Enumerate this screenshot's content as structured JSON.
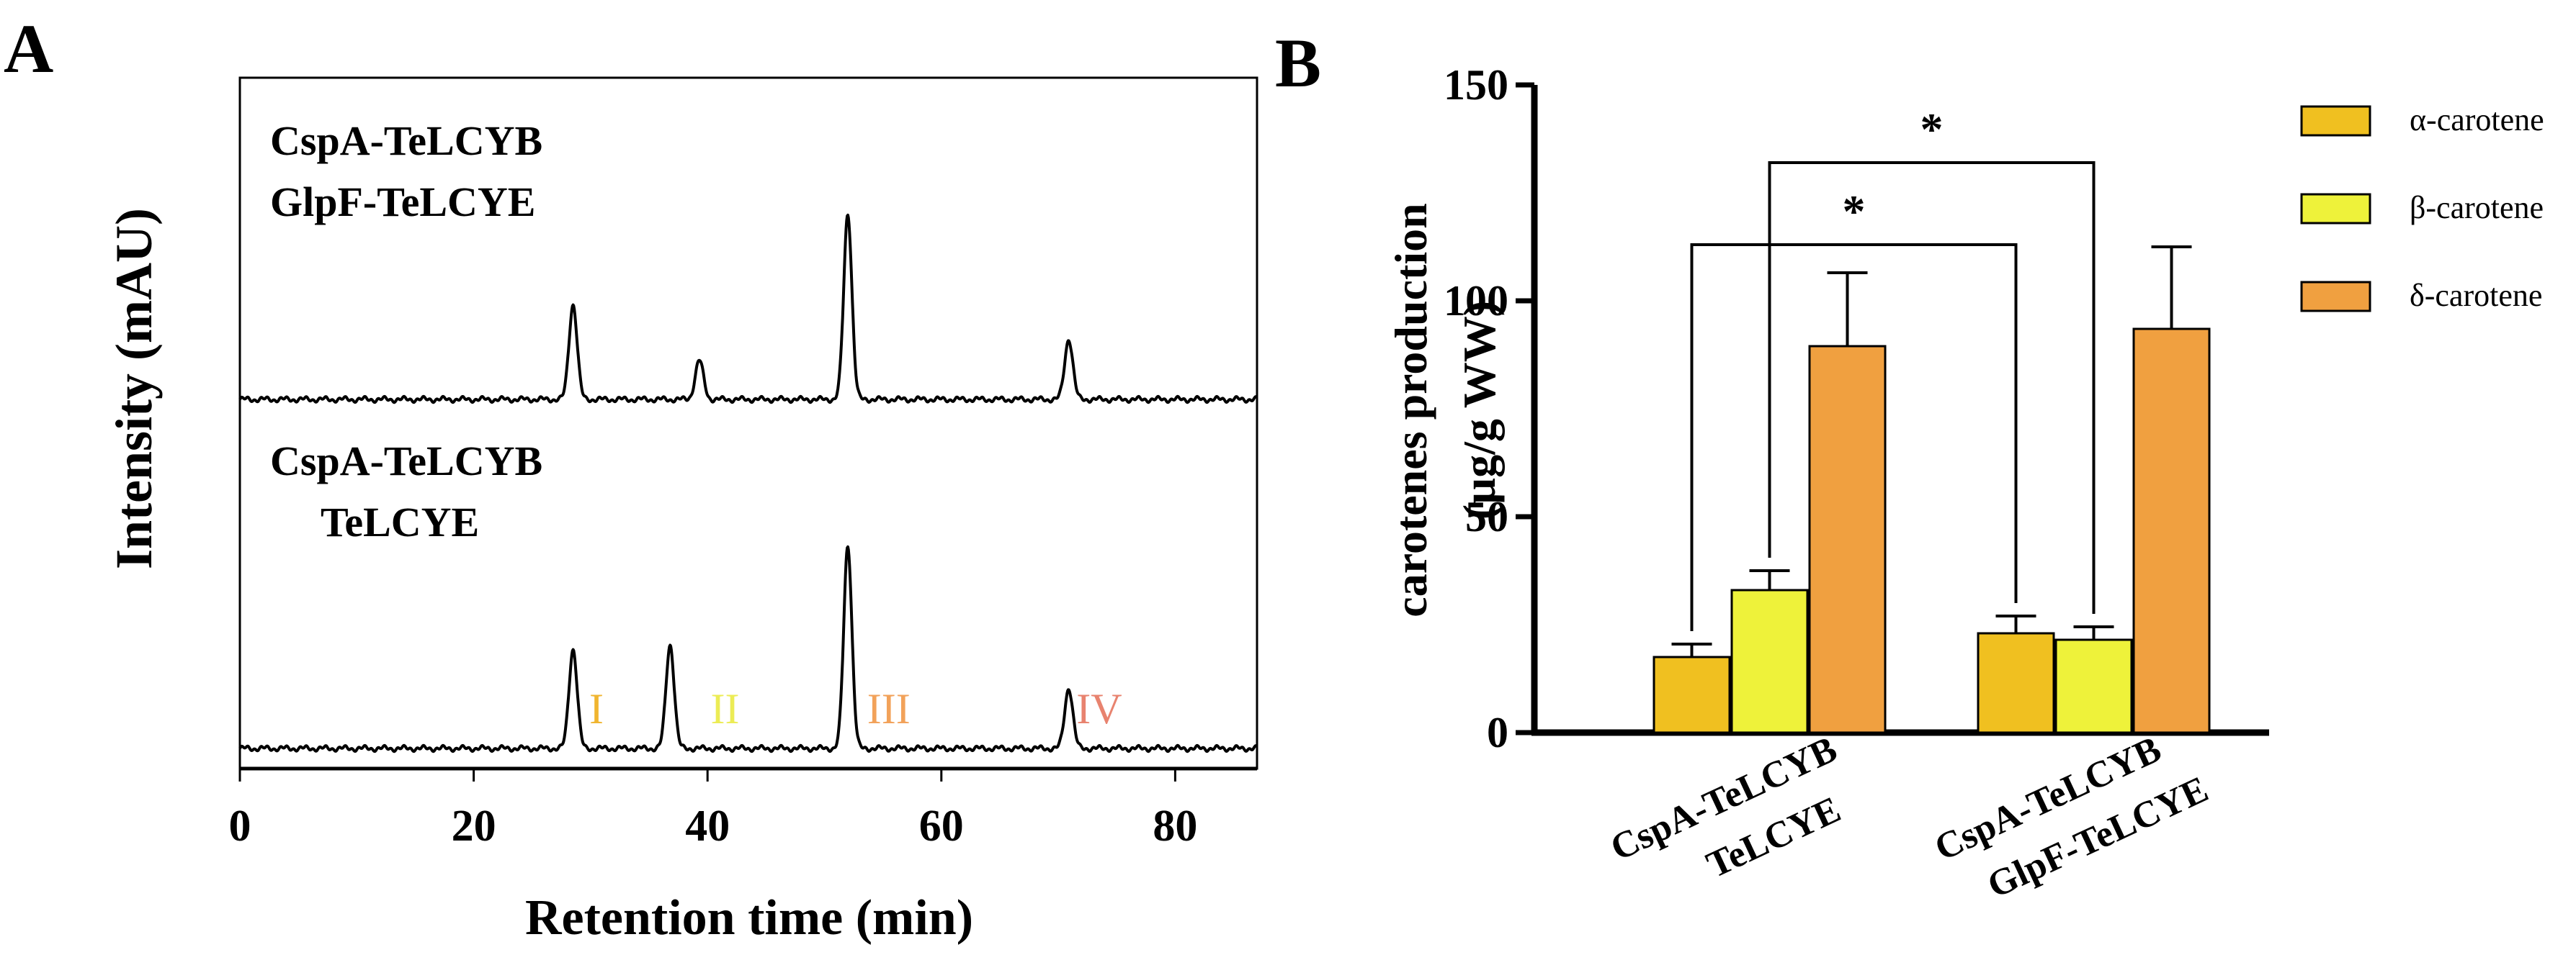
{
  "chart_data": [
    {
      "panel": "A",
      "type": "line",
      "xlabel": "Retention time (min)",
      "ylabel": "Intensity (mAU)",
      "xlim": [
        0,
        87
      ],
      "x_ticks": [
        0,
        20,
        40,
        60,
        80
      ],
      "grid": false,
      "series": [
        {
          "name": "CspA-TeLCYB GlpF-TeLCYE",
          "label_lines": [
            "CspA-TeLCYB",
            "GlpF-TeLCYE"
          ],
          "peaks": [
            {
              "x": 28.5,
              "height": 0.22
            },
            {
              "x": 39.3,
              "height": 0.09
            },
            {
              "x": 52.0,
              "height": 0.43
            },
            {
              "x": 70.9,
              "height": 0.14
            }
          ]
        },
        {
          "name": "CspA-TeLCYB TeLCYE",
          "label_lines": [
            "CspA-TeLCYB",
            "TeLCYE"
          ],
          "peaks": [
            {
              "x": 28.5,
              "height": 0.23
            },
            {
              "x": 36.8,
              "height": 0.24
            },
            {
              "x": 52.0,
              "height": 0.47
            },
            {
              "x": 70.9,
              "height": 0.14
            }
          ]
        }
      ],
      "annotations": [
        {
          "text": "I",
          "x": 30.5,
          "color": "#f0b530"
        },
        {
          "text": "II",
          "x": 41.5,
          "color": "#ecec55"
        },
        {
          "text": "III",
          "x": 55.5,
          "color": "#f2a25a"
        },
        {
          "text": "IV",
          "x": 73.5,
          "color": "#e8836f"
        }
      ]
    },
    {
      "panel": "B",
      "type": "bar",
      "ylabel_lines": [
        "carotenes production",
        "(µg/g WW)"
      ],
      "ylim": [
        0,
        150
      ],
      "y_ticks": [
        0,
        50,
        100,
        150
      ],
      "categories": [
        {
          "lines": [
            "CspA-TeLCYB",
            "TeLCYE"
          ]
        },
        {
          "lines": [
            "CspA-TeLCYB",
            "GlpF-TeLCYE"
          ]
        }
      ],
      "legend_position": "right",
      "series": [
        {
          "name": "α-carotene",
          "color": "#f0c020",
          "values": [
            17.5,
            23.0
          ],
          "errors": [
            3.0,
            4.0
          ]
        },
        {
          "name": "β-carotene",
          "color": "#eef23a",
          "values": [
            33.0,
            21.5
          ],
          "errors": [
            4.5,
            3.0
          ]
        },
        {
          "name": "δ-carotene",
          "color": "#f0a040",
          "values": [
            89.5,
            93.5
          ],
          "errors": [
            17.0,
            19.0
          ]
        }
      ],
      "significance": [
        {
          "text": "*",
          "from": {
            "category": 0,
            "series": 0
          },
          "to": {
            "category": 1,
            "series": 0
          },
          "level": 113
        },
        {
          "text": "*",
          "from": {
            "category": 0,
            "series": 1
          },
          "to": {
            "category": 1,
            "series": 1
          },
          "level": 132
        }
      ]
    }
  ]
}
